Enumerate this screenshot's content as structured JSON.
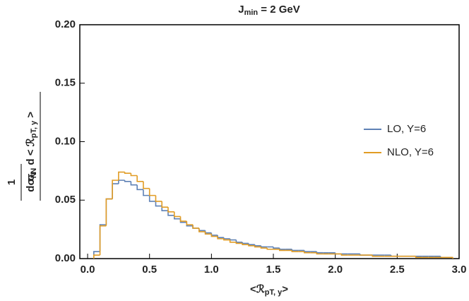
{
  "chart_data": {
    "type": "step-histogram",
    "title": [
      {
        "text": "J",
        "sub": false
      },
      {
        "text": "min",
        "sub": true
      },
      {
        "text": " = 2 GeV",
        "sub": false
      }
    ],
    "xlabel": [
      {
        "text": "<ℛ",
        "sub": false
      },
      {
        "text": "pT, y",
        "sub": true
      },
      {
        "text": ">",
        "sub": false
      }
    ],
    "ylabel": {
      "factor": "1",
      "numerator": [
        {
          "text": "dσ",
          "sub": false
        },
        {
          "text": "N",
          "sub": true
        }
      ],
      "denominator": [
        {
          "text": "σ",
          "sub": false
        },
        {
          "text": "N",
          "sub": true
        },
        {
          "text": "  d < ℛ",
          "sub": false
        },
        {
          "text": "pT, y",
          "sub": true
        },
        {
          "text": " >",
          "sub": false
        }
      ]
    },
    "bins": [
      0.05,
      0.1,
      0.15,
      0.2,
      0.25,
      0.3,
      0.35,
      0.4,
      0.45,
      0.5,
      0.55,
      0.6,
      0.65,
      0.7,
      0.75,
      0.8,
      0.85,
      0.9,
      0.95,
      1.0,
      1.05,
      1.1,
      1.15,
      1.2,
      1.25,
      1.3,
      1.35,
      1.4,
      1.45,
      1.5,
      1.55,
      1.6,
      1.65,
      1.7,
      1.75,
      1.8,
      1.85,
      1.9,
      1.95,
      2.0,
      2.05,
      2.1,
      2.15,
      2.2,
      2.25,
      2.3,
      2.35,
      2.4,
      2.45,
      2.5,
      2.55,
      2.6,
      2.65,
      2.7,
      2.75,
      2.8,
      2.85,
      2.9,
      2.95
    ],
    "series": [
      {
        "name": "LO, Y=6",
        "color": "#5e81b5",
        "values": [
          0.006,
          0.029,
          0.051,
          0.064,
          0.067,
          0.066,
          0.063,
          0.059,
          0.054,
          0.049,
          0.045,
          0.041,
          0.037,
          0.034,
          0.031,
          0.028,
          0.026,
          0.024,
          0.022,
          0.02,
          0.018,
          0.017,
          0.016,
          0.014,
          0.013,
          0.012,
          0.011,
          0.01,
          0.01,
          0.009,
          0.008,
          0.008,
          0.007,
          0.007,
          0.006,
          0.006,
          0.005,
          0.005,
          0.005,
          0.004,
          0.004,
          0.004,
          0.004,
          0.003,
          0.003,
          0.003,
          0.003,
          0.003,
          0.002,
          0.002,
          0.002,
          0.002,
          0.002,
          0.002,
          0.002,
          0.002,
          0.001,
          0.001
        ]
      },
      {
        "name": "NLO, Y=6",
        "color": "#e19c24",
        "values": [
          0.003,
          0.028,
          0.051,
          0.067,
          0.074,
          0.073,
          0.071,
          0.066,
          0.06,
          0.054,
          0.049,
          0.044,
          0.04,
          0.036,
          0.032,
          0.029,
          0.026,
          0.023,
          0.021,
          0.019,
          0.017,
          0.016,
          0.014,
          0.013,
          0.012,
          0.011,
          0.01,
          0.009,
          0.008,
          0.008,
          0.007,
          0.007,
          0.006,
          0.006,
          0.005,
          0.005,
          0.004,
          0.004,
          0.004,
          0.004,
          0.003,
          0.003,
          0.003,
          0.003,
          0.003,
          0.002,
          0.002,
          0.002,
          0.002,
          0.002,
          0.002,
          0.002,
          0.001,
          0.001,
          0.001,
          0.001,
          0.001,
          0.001
        ]
      }
    ],
    "xlim": [
      -0.063,
      3.0
    ],
    "xticks": [
      {
        "value": 0,
        "label": "0.0"
      },
      0.5,
      {
        "value": 1,
        "label": "1.0"
      },
      1.5,
      {
        "value": 2,
        "label": "2.0"
      },
      2.5,
      {
        "value": 3,
        "label": "3.0"
      }
    ],
    "ylim": [
      0,
      0.2
    ],
    "yticks": [
      {
        "value": 0,
        "label": "0.00"
      },
      {
        "value": 0.05,
        "label": "0.05"
      },
      {
        "value": 0.1,
        "label": "0.10"
      },
      {
        "value": 0.15,
        "label": "0.15"
      },
      {
        "value": 0.2,
        "label": "0.20"
      }
    ],
    "legend": "right"
  }
}
